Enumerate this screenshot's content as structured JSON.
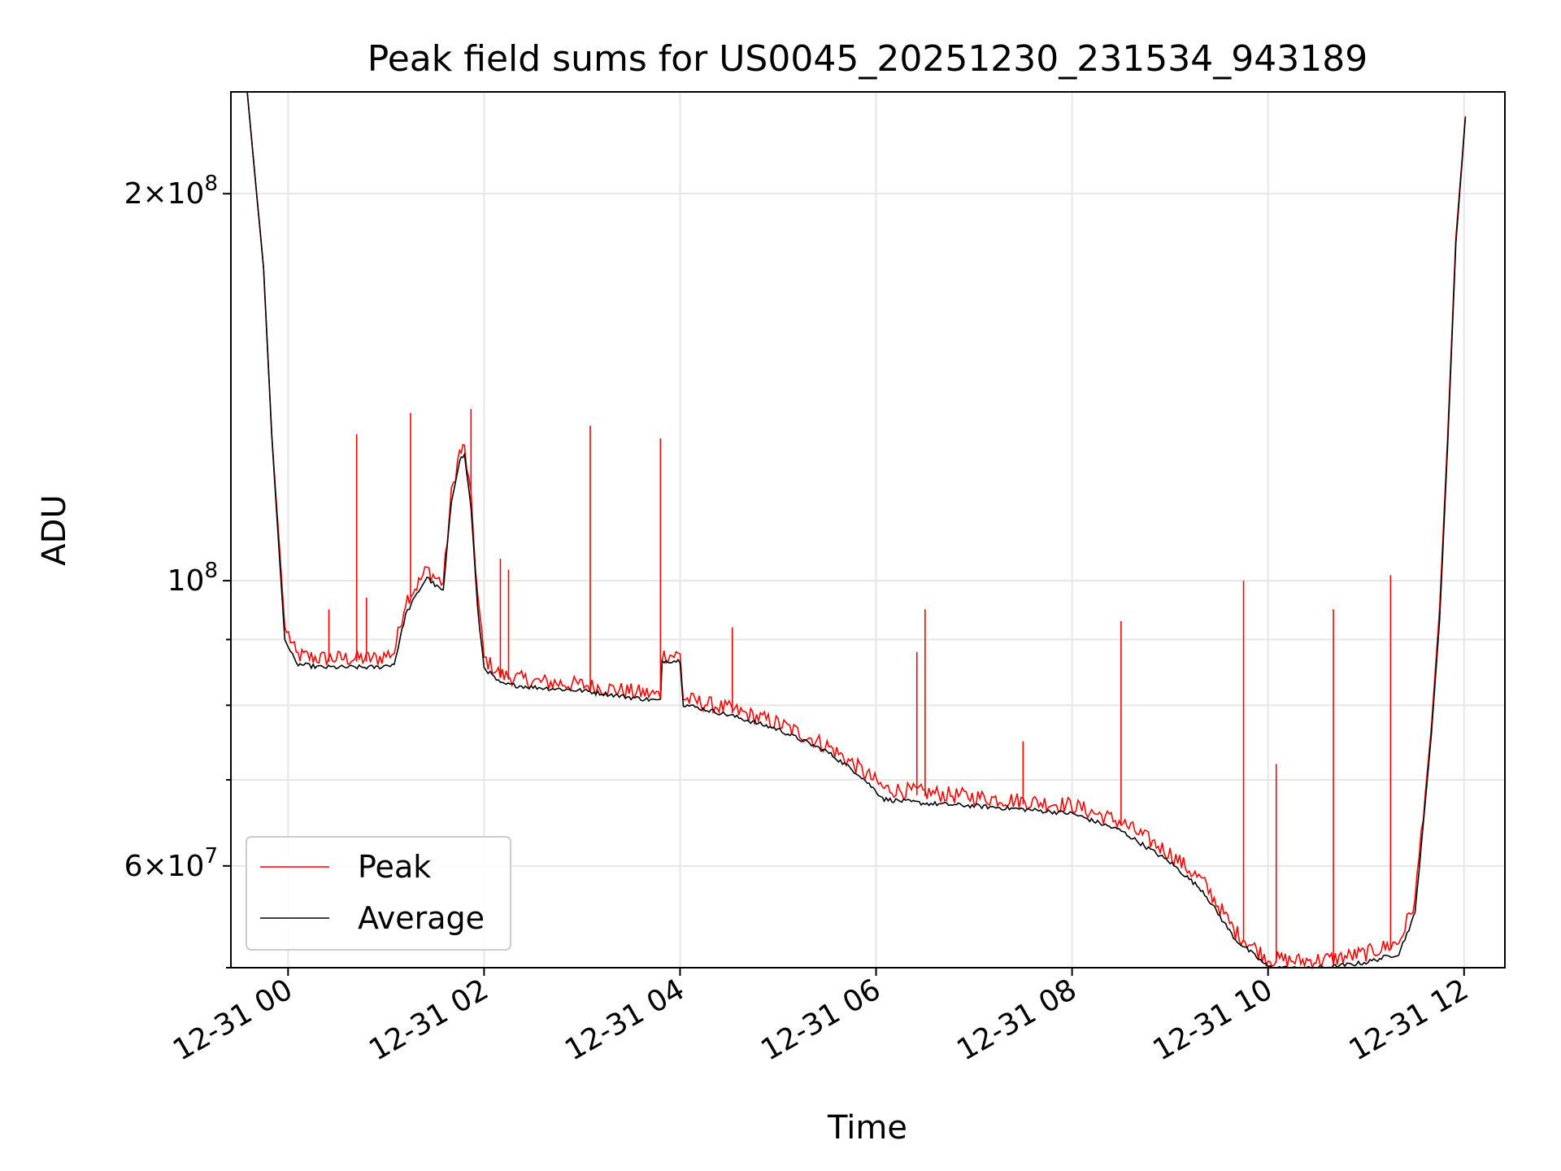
{
  "chart_data": {
    "type": "line",
    "title": "Peak field sums for US0045_20251230_231534_943189",
    "xlabel": "Time",
    "ylabel": "ADU",
    "yscale": "log",
    "grid": true,
    "legend_position": "lower-left",
    "xlim": [
      "12-30 23:25",
      "12-31 12:25"
    ],
    "ylim": [
      50000000,
      240000000
    ],
    "x_ticks": [
      "12-31 00",
      "12-31 02",
      "12-31 04",
      "12-31 06",
      "12-31 08",
      "12-31 10",
      "12-31 12"
    ],
    "y_ticks": [
      {
        "value": 200000000,
        "mantissa": "2",
        "base": "10",
        "exp": "8"
      },
      {
        "value": 100000000,
        "mantissa": "",
        "base": "10",
        "exp": "8"
      },
      {
        "value": 60000000,
        "mantissa": "6",
        "base": "10",
        "exp": "7"
      }
    ],
    "y_minor_ticks": [
      50000000,
      70000000,
      80000000,
      90000000
    ],
    "series": [
      {
        "name": "Peak",
        "color": "#ff0000",
        "points": [
          [
            "12-30 23:35",
            240000000
          ],
          [
            "12-30 23:45",
            175000000
          ],
          [
            "12-30 23:50",
            130000000
          ],
          [
            "12-30 23:55",
            105000000
          ],
          [
            "12-30 23:58",
            92000000
          ],
          [
            "12-31 00:05",
            87000000
          ],
          [
            "12-31 00:20",
            86500000
          ],
          [
            "12-31 00:40",
            86500000
          ],
          [
            "12-31 00:55",
            86500000
          ],
          [
            "12-31 01:05",
            87500000
          ],
          [
            "12-31 01:12",
            96000000
          ],
          [
            "12-31 01:20",
            99000000
          ],
          [
            "12-31 01:25",
            101500000
          ],
          [
            "12-31 01:30",
            100000000
          ],
          [
            "12-31 01:35",
            99000000
          ],
          [
            "12-31 01:40",
            116000000
          ],
          [
            "12-31 01:45",
            125000000
          ],
          [
            "12-31 01:48",
            126000000
          ],
          [
            "12-31 01:52",
            115000000
          ],
          [
            "12-31 01:56",
            97000000
          ],
          [
            "12-31 02:00",
            86500000
          ],
          [
            "12-31 02:10",
            84000000
          ],
          [
            "12-31 02:30",
            83000000
          ],
          [
            "12-31 03:00",
            82500000
          ],
          [
            "12-31 03:30",
            81500000
          ],
          [
            "12-31 03:48",
            81000000
          ],
          [
            "12-31 03:49",
            87000000
          ],
          [
            "12-31 04:00",
            87000000
          ],
          [
            "12-31 04:02",
            80500000
          ],
          [
            "12-31 04:30",
            79000000
          ],
          [
            "12-31 05:00",
            77000000
          ],
          [
            "12-31 05:30",
            74000000
          ],
          [
            "12-31 05:50",
            71000000
          ],
          [
            "12-31 06:05",
            68500000
          ],
          [
            "12-31 06:30",
            68000000
          ],
          [
            "12-31 07:00",
            67500000
          ],
          [
            "12-31 07:30",
            67000000
          ],
          [
            "12-31 08:00",
            66500000
          ],
          [
            "12-31 08:30",
            64500000
          ],
          [
            "12-31 09:00",
            61000000
          ],
          [
            "12-31 09:20",
            58000000
          ],
          [
            "12-31 09:40",
            53000000
          ],
          [
            "12-31 10:00",
            50500000
          ],
          [
            "12-31 10:20",
            50300000
          ],
          [
            "12-31 10:40",
            50500000
          ],
          [
            "12-31 11:00",
            51000000
          ],
          [
            "12-31 11:20",
            52000000
          ],
          [
            "12-31 11:30",
            56000000
          ],
          [
            "12-31 11:40",
            77000000
          ],
          [
            "12-31 11:45",
            95000000
          ],
          [
            "12-31 11:50",
            130000000
          ],
          [
            "12-31 11:55",
            185000000
          ],
          [
            "12-31 12:02",
            240000000
          ]
        ]
      },
      {
        "name": "Average",
        "color": "#000000",
        "points": [
          [
            "12-30 23:35",
            240000000
          ],
          [
            "12-30 23:45",
            175000000
          ],
          [
            "12-30 23:50",
            130000000
          ],
          [
            "12-30 23:55",
            103000000
          ],
          [
            "12-30 23:58",
            90000000
          ],
          [
            "12-31 00:05",
            86000000
          ],
          [
            "12-31 00:20",
            85500000
          ],
          [
            "12-31 00:40",
            85500000
          ],
          [
            "12-31 00:55",
            85500000
          ],
          [
            "12-31 01:05",
            86000000
          ],
          [
            "12-31 01:12",
            94000000
          ],
          [
            "12-31 01:20",
            98000000
          ],
          [
            "12-31 01:25",
            100500000
          ],
          [
            "12-31 01:30",
            99000000
          ],
          [
            "12-31 01:35",
            98000000
          ],
          [
            "12-31 01:40",
            115000000
          ],
          [
            "12-31 01:45",
            124000000
          ],
          [
            "12-31 01:48",
            125000000
          ],
          [
            "12-31 01:52",
            114000000
          ],
          [
            "12-31 01:56",
            95000000
          ],
          [
            "12-31 02:00",
            85500000
          ],
          [
            "12-31 02:10",
            83000000
          ],
          [
            "12-31 02:30",
            82500000
          ],
          [
            "12-31 03:00",
            82000000
          ],
          [
            "12-31 03:30",
            81000000
          ],
          [
            "12-31 03:48",
            80500000
          ],
          [
            "12-31 03:49",
            86500000
          ],
          [
            "12-31 04:00",
            86500000
          ],
          [
            "12-31 04:02",
            80000000
          ],
          [
            "12-31 04:30",
            78500000
          ],
          [
            "12-31 05:00",
            76500000
          ],
          [
            "12-31 05:30",
            73500000
          ],
          [
            "12-31 05:50",
            70500000
          ],
          [
            "12-31 06:05",
            67500000
          ],
          [
            "12-31 06:30",
            67000000
          ],
          [
            "12-31 07:00",
            66700000
          ],
          [
            "12-31 07:30",
            66300000
          ],
          [
            "12-31 08:00",
            65800000
          ],
          [
            "12-31 08:30",
            63800000
          ],
          [
            "12-31 09:00",
            60300000
          ],
          [
            "12-31 09:20",
            57300000
          ],
          [
            "12-31 09:40",
            52500000
          ],
          [
            "12-31 10:00",
            50000000
          ],
          [
            "12-31 10:20",
            49800000
          ],
          [
            "12-31 10:40",
            50000000
          ],
          [
            "12-31 11:00",
            50400000
          ],
          [
            "12-31 11:20",
            51200000
          ],
          [
            "12-31 11:30",
            55000000
          ],
          [
            "12-31 11:40",
            76000000
          ],
          [
            "12-31 11:45",
            93000000
          ],
          [
            "12-31 11:50",
            128000000
          ],
          [
            "12-31 11:55",
            183000000
          ],
          [
            "12-31 12:02",
            240000000
          ]
        ]
      }
    ],
    "spikes": [
      [
        "12-31 00:25",
        95000000
      ],
      [
        "12-31 00:42",
        130000000
      ],
      [
        "12-31 00:48",
        97000000
      ],
      [
        "12-31 01:15",
        135000000
      ],
      [
        "12-31 01:52",
        136000000
      ],
      [
        "12-31 02:10",
        104000000
      ],
      [
        "12-31 02:15",
        102000000
      ],
      [
        "12-31 03:05",
        132000000
      ],
      [
        "12-31 03:48",
        129000000
      ],
      [
        "12-31 04:32",
        92000000
      ],
      [
        "12-31 06:25",
        88000000
      ],
      [
        "12-31 06:30",
        95000000
      ],
      [
        "12-31 07:30",
        75000000
      ],
      [
        "12-31 08:30",
        93000000
      ],
      [
        "12-31 09:45",
        100000000
      ],
      [
        "12-31 10:05",
        72000000
      ],
      [
        "12-31 10:40",
        95000000
      ],
      [
        "12-31 11:15",
        101000000
      ]
    ]
  }
}
